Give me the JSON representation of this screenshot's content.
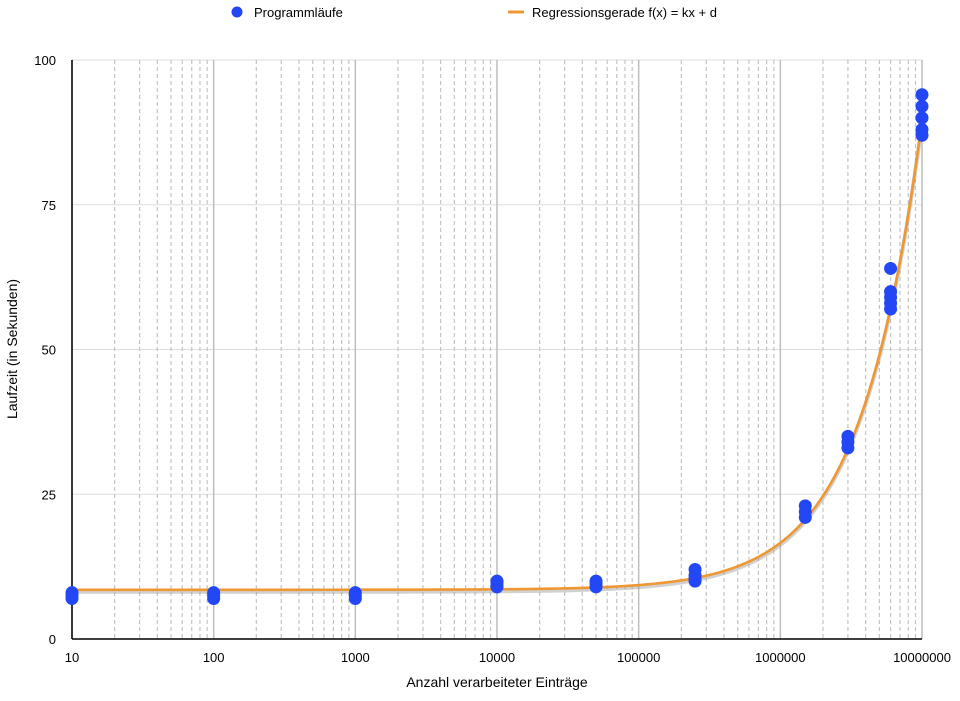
{
  "chart_data": {
    "type": "scatter",
    "title": "",
    "xlabel": "Anzahl verarbeiteter Einträge",
    "ylabel": "Laufzeit (in Sekunden)",
    "xscale": "log",
    "xlim": [
      10,
      10000000
    ],
    "ylim": [
      0,
      100
    ],
    "xticks": [
      10,
      100,
      1000,
      10000,
      100000,
      1000000,
      10000000
    ],
    "xtick_labels": [
      "10",
      "100",
      "1000",
      "10000",
      "100000",
      "1000000",
      "10000000"
    ],
    "yticks": [
      0,
      25,
      50,
      75,
      100
    ],
    "ytick_labels": [
      "0",
      "25",
      "50",
      "75",
      "100"
    ],
    "grid": true,
    "minor_grid": "dashed, vertical",
    "legend": {
      "position": "top",
      "entries": [
        {
          "label": "Programmläufe",
          "marker": "circle",
          "color": "#2447f5"
        },
        {
          "label": "Regressionsgerade f(x) = kx + d",
          "marker": "line",
          "color": "#ee9733"
        }
      ]
    },
    "series": [
      {
        "name": "Programmläufe",
        "kind": "scatter",
        "color": "#2447f5",
        "points": [
          [
            10,
            7
          ],
          [
            10,
            7.5
          ],
          [
            10,
            8
          ],
          [
            100,
            7
          ],
          [
            100,
            7.5
          ],
          [
            100,
            8
          ],
          [
            1000,
            7
          ],
          [
            1000,
            7.5
          ],
          [
            1000,
            8
          ],
          [
            10000,
            9
          ],
          [
            10000,
            9.5
          ],
          [
            10000,
            10
          ],
          [
            50000,
            9
          ],
          [
            50000,
            9.5
          ],
          [
            50000,
            10
          ],
          [
            250000,
            10
          ],
          [
            250000,
            10.5
          ],
          [
            250000,
            11
          ],
          [
            250000,
            12
          ],
          [
            1500000,
            21
          ],
          [
            1500000,
            22
          ],
          [
            1500000,
            23
          ],
          [
            3000000,
            33
          ],
          [
            3000000,
            34
          ],
          [
            3000000,
            35
          ],
          [
            6000000,
            57
          ],
          [
            6000000,
            58
          ],
          [
            6000000,
            59
          ],
          [
            6000000,
            60
          ],
          [
            6000000,
            64
          ],
          [
            10000000,
            87
          ],
          [
            10000000,
            88
          ],
          [
            10000000,
            90
          ],
          [
            10000000,
            92
          ],
          [
            10000000,
            94
          ]
        ]
      },
      {
        "name": "Regressionsgerade f(x) = kx + d",
        "kind": "line",
        "color": "#ee9733",
        "k": 8.1e-06,
        "d": 8.5
      }
    ]
  }
}
